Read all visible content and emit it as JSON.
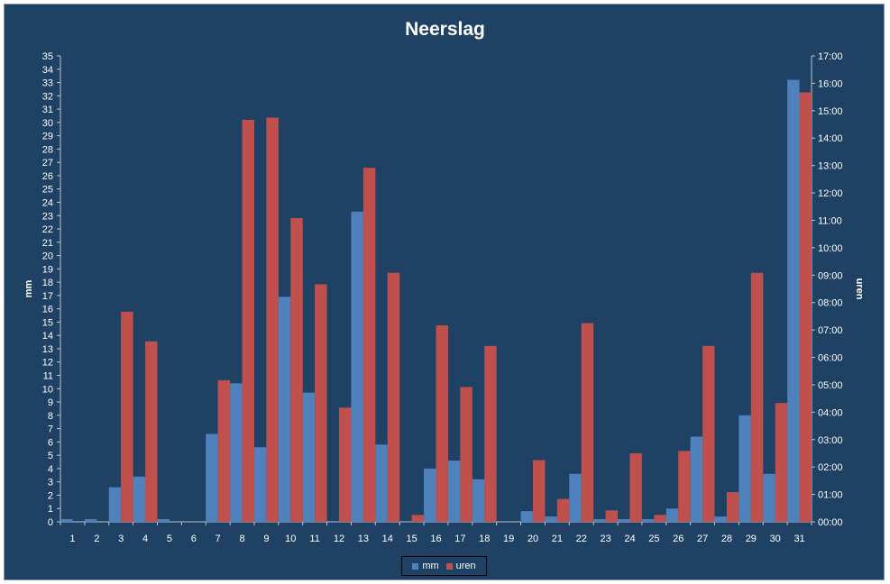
{
  "chart_data": {
    "type": "bar",
    "title": "Neerslag",
    "ylabel": "mm",
    "y2label": "uren",
    "categories": [
      "1",
      "2",
      "3",
      "4",
      "5",
      "6",
      "7",
      "8",
      "9",
      "10",
      "11",
      "12",
      "13",
      "14",
      "15",
      "16",
      "17",
      "18",
      "19",
      "20",
      "21",
      "22",
      "23",
      "24",
      "25",
      "26",
      "27",
      "28",
      "29",
      "30",
      "31"
    ],
    "ylim": [
      0,
      35
    ],
    "y2lim": [
      "00:00",
      "17:00"
    ],
    "yticks": [
      "0",
      "1",
      "2",
      "3",
      "4",
      "5",
      "6",
      "7",
      "8",
      "9",
      "10",
      "11",
      "12",
      "13",
      "14",
      "15",
      "16",
      "17",
      "18",
      "19",
      "20",
      "21",
      "22",
      "23",
      "24",
      "25",
      "26",
      "27",
      "28",
      "29",
      "30",
      "31",
      "32",
      "33",
      "34",
      "35"
    ],
    "y2ticks": [
      "00:00",
      "01:00",
      "02:00",
      "03:00",
      "04:00",
      "05:00",
      "06:00",
      "07:00",
      "08:00",
      "09:00",
      "10:00",
      "11:00",
      "12:00",
      "13:00",
      "14:00",
      "15:00",
      "16:00",
      "17:00"
    ],
    "series": [
      {
        "name": "mm",
        "color": "#4f81bd",
        "axis": "left",
        "values": [
          0.2,
          0.2,
          2.6,
          3.4,
          0.2,
          0,
          6.6,
          10.4,
          5.6,
          16.9,
          9.7,
          0,
          23.3,
          5.8,
          0,
          4.0,
          4.6,
          3.2,
          0,
          0.8,
          0.4,
          3.6,
          0.2,
          0.2,
          0.2,
          1.0,
          6.4,
          0.4,
          8.0,
          3.6,
          33.2
        ]
      },
      {
        "name": "uren",
        "color": "#c0504d",
        "axis": "right",
        "values": [
          "00:00",
          "00:00",
          "07:40",
          "06:35",
          "00:00",
          "00:00",
          "05:10",
          "14:40",
          "14:45",
          "11:05",
          "08:40",
          "04:10",
          "12:55",
          "09:05",
          "00:15",
          "07:10",
          "04:55",
          "06:25",
          "00:00",
          "02:15",
          "00:50",
          "07:15",
          "00:25",
          "02:30",
          "00:15",
          "02:35",
          "06:25",
          "01:05",
          "09:05",
          "04:20",
          "15:40"
        ]
      }
    ],
    "grid": false,
    "legend": "bottom"
  }
}
